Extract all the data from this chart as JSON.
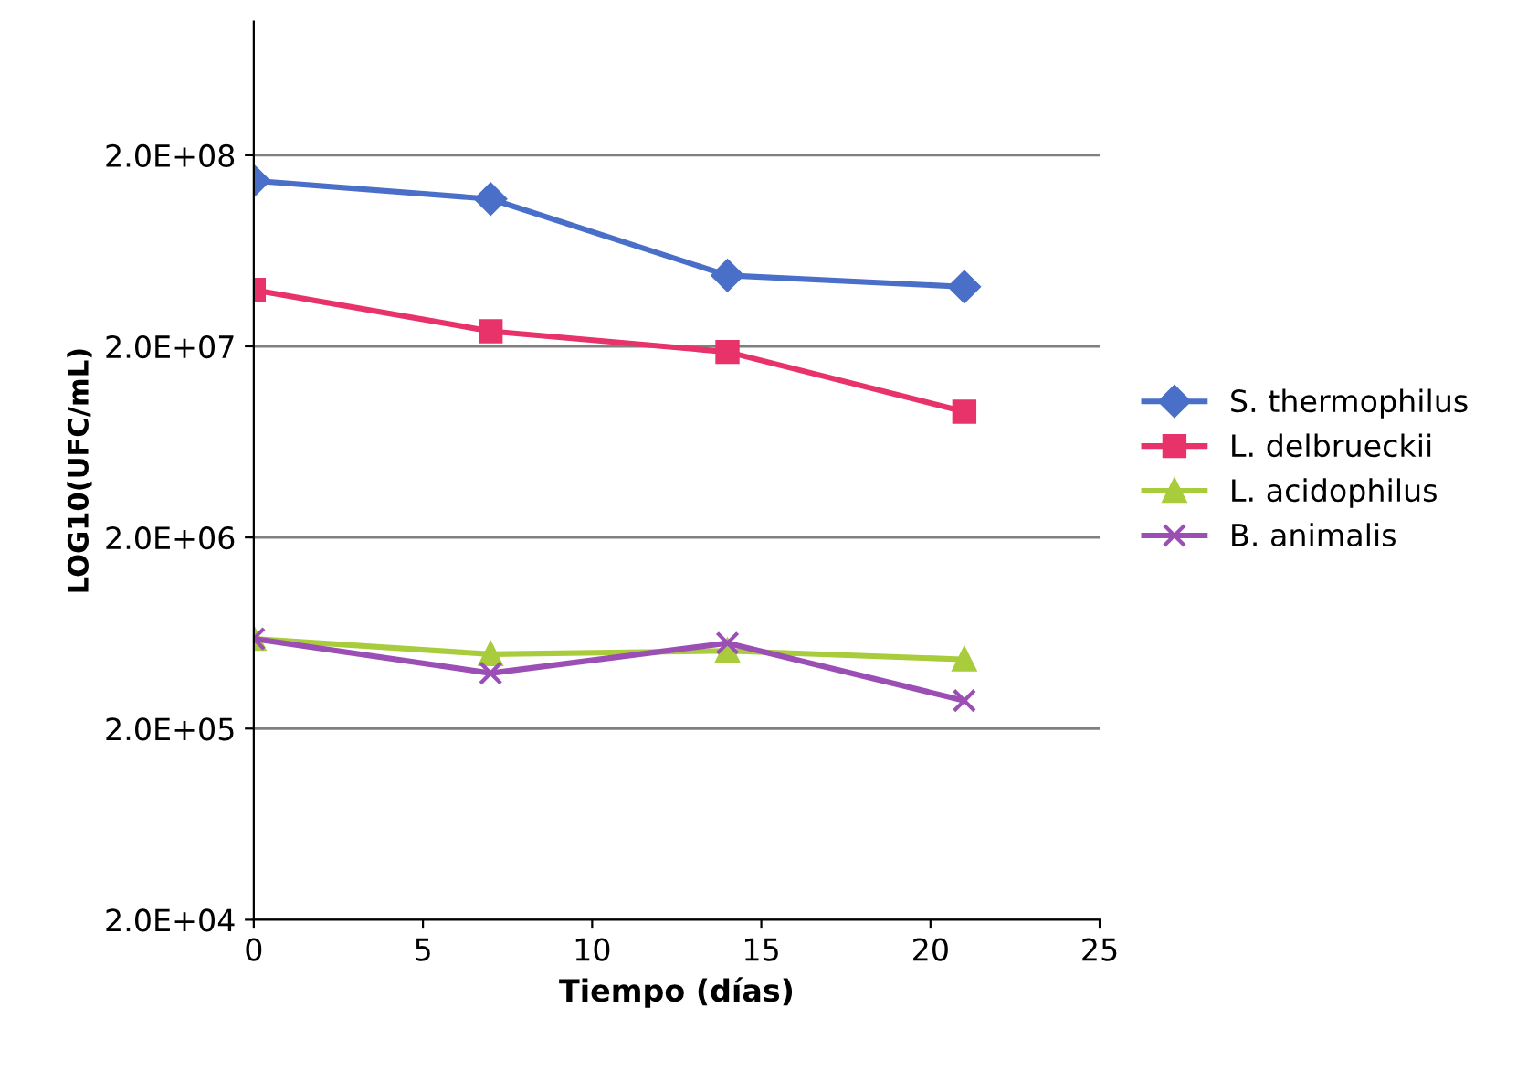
{
  "chart_data": {
    "type": "line",
    "xlabel": "Tiempo (días)",
    "ylabel": "LOG10(UFC/mL)",
    "x": [
      0,
      7,
      14,
      21
    ],
    "series": [
      {
        "name": "S. thermophilus",
        "color": "#4a6fc8",
        "marker": "diamond",
        "values": [
          147000000.0,
          118000000.0,
          47000000.0,
          41000000.0
        ]
      },
      {
        "name": "L. delbrueckii",
        "color": "#e8336a",
        "marker": "square",
        "values": [
          39500000.0,
          24000000.0,
          18700000.0,
          9100000.0
        ]
      },
      {
        "name": "L. acidophilus",
        "color": "#a8cc3c",
        "marker": "triangle",
        "values": [
          590000.0,
          490000.0,
          510000.0,
          460000.0
        ]
      },
      {
        "name": "B. animalis",
        "color": "#9b4fb5",
        "marker": "cross",
        "values": [
          590000.0,
          390000.0,
          560000.0,
          280000.0
        ]
      }
    ],
    "log": "y",
    "xlim": [
      0,
      25
    ],
    "xticks": [
      0,
      5,
      10,
      15,
      20,
      25
    ],
    "ylim": [
      20000.0,
      1000000000.0
    ],
    "yticks": [
      {
        "value": 20000.0,
        "label": "2.0E+04"
      },
      {
        "value": 200000.0,
        "label": "2.0E+05"
      },
      {
        "value": 2000000.0,
        "label": "2.0E+06"
      },
      {
        "value": 20000000.0,
        "label": "2.0E+07"
      },
      {
        "value": 200000000.0,
        "label": "2.0E+08"
      }
    ],
    "grid": "y",
    "legend": "right",
    "line_style": "solid"
  }
}
